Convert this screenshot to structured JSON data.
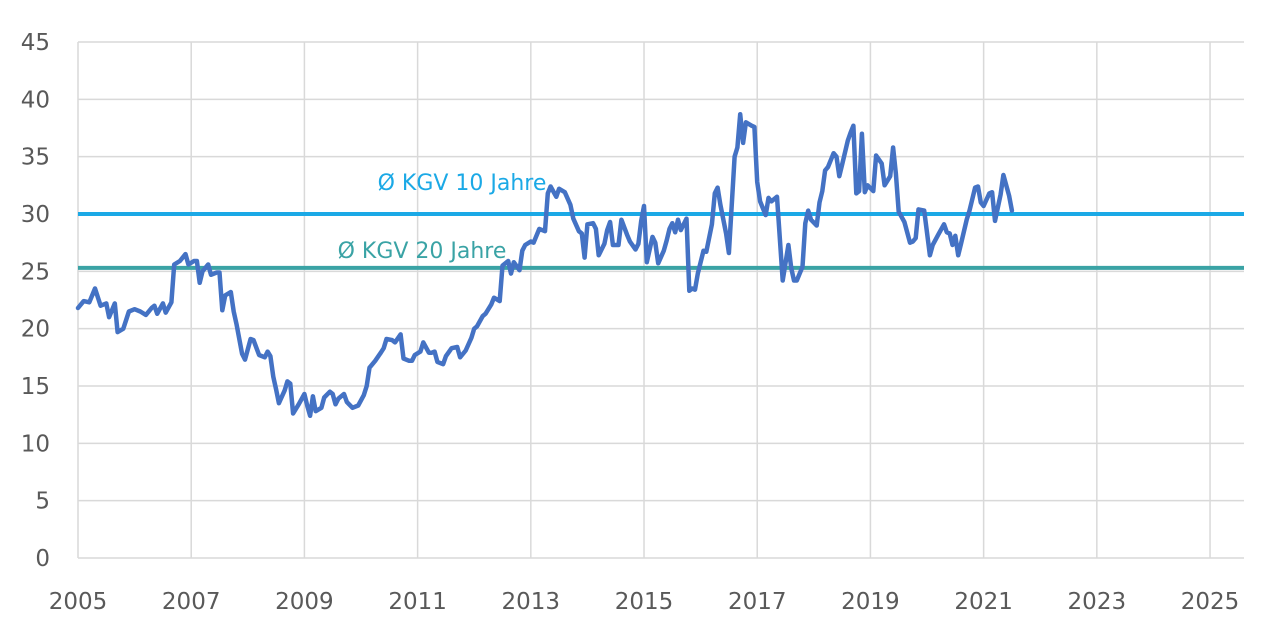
{
  "chart_data": {
    "type": "line",
    "title": "",
    "xlabel": "",
    "ylabel": "",
    "xlim": [
      2005.0,
      2025.6
    ],
    "ylim": [
      0,
      45
    ],
    "yticks": [
      0,
      5,
      10,
      15,
      20,
      25,
      30,
      35,
      40,
      45
    ],
    "xticks": [
      2005,
      2007,
      2009,
      2011,
      2013,
      2015,
      2017,
      2019,
      2021,
      2023,
      2025
    ],
    "grid": true,
    "legend": "none",
    "colors": {
      "series": "#4472C4",
      "avg10": "#1BA9E6",
      "avg20": "#3AA3A5",
      "grid": "#d9d9d9",
      "text": "#595959"
    },
    "reference_lines": [
      {
        "name": "Ø KGV 10 Jahre",
        "value": 30.0,
        "color": "#1BA9E6"
      },
      {
        "name": "Ø KGV 20 Jahre",
        "value": 25.3,
        "color": "#3AA3A5"
      }
    ],
    "series": [
      {
        "values": [
          [
            2005.0,
            21.8
          ],
          [
            2005.1,
            22.4
          ],
          [
            2005.2,
            22.3
          ],
          [
            2005.3,
            23.5
          ],
          [
            2005.4,
            22.0
          ],
          [
            2005.5,
            22.2
          ],
          [
            2005.55,
            21.0
          ],
          [
            2005.65,
            22.2
          ],
          [
            2005.7,
            19.7
          ],
          [
            2005.8,
            20.0
          ],
          [
            2005.9,
            21.5
          ],
          [
            2006.0,
            21.7
          ],
          [
            2006.1,
            21.5
          ],
          [
            2006.2,
            21.2
          ],
          [
            2006.3,
            21.8
          ],
          [
            2006.35,
            22.0
          ],
          [
            2006.4,
            21.3
          ],
          [
            2006.5,
            22.2
          ],
          [
            2006.55,
            21.4
          ],
          [
            2006.65,
            22.3
          ],
          [
            2006.7,
            25.6
          ],
          [
            2006.8,
            25.9
          ],
          [
            2006.9,
            26.5
          ],
          [
            2006.95,
            25.6
          ],
          [
            2007.05,
            25.9
          ],
          [
            2007.1,
            25.9
          ],
          [
            2007.15,
            24.0
          ],
          [
            2007.2,
            25.0
          ],
          [
            2007.3,
            25.6
          ],
          [
            2007.35,
            24.7
          ],
          [
            2007.45,
            24.9
          ],
          [
            2007.5,
            24.9
          ],
          [
            2007.55,
            21.6
          ],
          [
            2007.6,
            22.9
          ],
          [
            2007.7,
            23.2
          ],
          [
            2007.75,
            21.5
          ],
          [
            2007.8,
            20.4
          ],
          [
            2007.9,
            17.8
          ],
          [
            2007.95,
            17.3
          ],
          [
            2008.05,
            19.1
          ],
          [
            2008.1,
            19.0
          ],
          [
            2008.2,
            17.7
          ],
          [
            2008.3,
            17.5
          ],
          [
            2008.35,
            18.0
          ],
          [
            2008.4,
            17.6
          ],
          [
            2008.45,
            15.8
          ],
          [
            2008.5,
            14.7
          ],
          [
            2008.55,
            13.5
          ],
          [
            2008.65,
            14.6
          ],
          [
            2008.7,
            15.4
          ],
          [
            2008.75,
            15.2
          ],
          [
            2008.8,
            12.6
          ],
          [
            2008.9,
            13.4
          ],
          [
            2009.0,
            14.3
          ],
          [
            2009.05,
            13.3
          ],
          [
            2009.1,
            12.4
          ],
          [
            2009.15,
            14.1
          ],
          [
            2009.2,
            12.8
          ],
          [
            2009.3,
            13.1
          ],
          [
            2009.35,
            14.0
          ],
          [
            2009.45,
            14.5
          ],
          [
            2009.5,
            14.3
          ],
          [
            2009.55,
            13.4
          ],
          [
            2009.6,
            13.9
          ],
          [
            2009.7,
            14.3
          ],
          [
            2009.75,
            13.6
          ],
          [
            2009.85,
            13.1
          ],
          [
            2009.95,
            13.3
          ],
          [
            2010.05,
            14.2
          ],
          [
            2010.1,
            15.0
          ],
          [
            2010.15,
            16.6
          ],
          [
            2010.25,
            17.2
          ],
          [
            2010.35,
            17.9
          ],
          [
            2010.4,
            18.3
          ],
          [
            2010.45,
            19.1
          ],
          [
            2010.55,
            19.0
          ],
          [
            2010.6,
            18.8
          ],
          [
            2010.7,
            19.5
          ],
          [
            2010.75,
            17.4
          ],
          [
            2010.85,
            17.2
          ],
          [
            2010.9,
            17.2
          ],
          [
            2010.95,
            17.7
          ],
          [
            2011.05,
            18.0
          ],
          [
            2011.1,
            18.8
          ],
          [
            2011.2,
            17.9
          ],
          [
            2011.25,
            17.9
          ],
          [
            2011.3,
            18.0
          ],
          [
            2011.35,
            17.1
          ],
          [
            2011.45,
            16.9
          ],
          [
            2011.5,
            17.6
          ],
          [
            2011.6,
            18.3
          ],
          [
            2011.7,
            18.4
          ],
          [
            2011.75,
            17.5
          ],
          [
            2011.85,
            18.1
          ],
          [
            2011.95,
            19.2
          ],
          [
            2012.0,
            20.0
          ],
          [
            2012.05,
            20.2
          ],
          [
            2012.15,
            21.1
          ],
          [
            2012.2,
            21.3
          ],
          [
            2012.3,
            22.1
          ],
          [
            2012.35,
            22.7
          ],
          [
            2012.45,
            22.4
          ],
          [
            2012.5,
            25.5
          ],
          [
            2012.6,
            25.9
          ],
          [
            2012.65,
            24.8
          ],
          [
            2012.7,
            25.8
          ],
          [
            2012.8,
            25.1
          ],
          [
            2012.85,
            26.8
          ],
          [
            2012.9,
            27.3
          ],
          [
            2013.0,
            27.6
          ],
          [
            2013.05,
            27.5
          ],
          [
            2013.15,
            28.7
          ],
          [
            2013.25,
            28.5
          ],
          [
            2013.3,
            31.8
          ],
          [
            2013.35,
            32.4
          ],
          [
            2013.45,
            31.5
          ],
          [
            2013.5,
            32.2
          ],
          [
            2013.6,
            31.9
          ],
          [
            2013.7,
            30.8
          ],
          [
            2013.75,
            29.6
          ],
          [
            2013.85,
            28.5
          ],
          [
            2013.9,
            28.3
          ],
          [
            2013.95,
            26.2
          ],
          [
            2014.0,
            29.1
          ],
          [
            2014.1,
            29.2
          ],
          [
            2014.15,
            28.7
          ],
          [
            2014.2,
            26.4
          ],
          [
            2014.3,
            27.4
          ],
          [
            2014.35,
            28.6
          ],
          [
            2014.4,
            29.3
          ],
          [
            2014.45,
            27.3
          ],
          [
            2014.55,
            27.3
          ],
          [
            2014.6,
            29.5
          ],
          [
            2014.7,
            28.2
          ],
          [
            2014.75,
            27.6
          ],
          [
            2014.85,
            26.9
          ],
          [
            2014.9,
            27.4
          ],
          [
            2014.95,
            29.4
          ],
          [
            2015.0,
            30.7
          ],
          [
            2015.05,
            25.8
          ],
          [
            2015.15,
            28.0
          ],
          [
            2015.2,
            27.5
          ],
          [
            2015.25,
            25.7
          ],
          [
            2015.35,
            26.8
          ],
          [
            2015.4,
            27.7
          ],
          [
            2015.45,
            28.7
          ],
          [
            2015.5,
            29.2
          ],
          [
            2015.55,
            28.4
          ],
          [
            2015.6,
            29.5
          ],
          [
            2015.65,
            28.6
          ],
          [
            2015.75,
            29.6
          ],
          [
            2015.8,
            23.3
          ],
          [
            2015.85,
            23.5
          ],
          [
            2015.9,
            23.4
          ],
          [
            2015.95,
            24.8
          ],
          [
            2016.05,
            26.8
          ],
          [
            2016.1,
            26.7
          ],
          [
            2016.2,
            29.1
          ],
          [
            2016.25,
            31.8
          ],
          [
            2016.3,
            32.3
          ],
          [
            2016.35,
            30.8
          ],
          [
            2016.45,
            28.3
          ],
          [
            2016.5,
            26.6
          ],
          [
            2016.6,
            35.0
          ],
          [
            2016.65,
            35.8
          ],
          [
            2016.7,
            38.7
          ],
          [
            2016.75,
            36.2
          ],
          [
            2016.8,
            38.0
          ],
          [
            2016.9,
            37.7
          ],
          [
            2016.95,
            37.6
          ],
          [
            2017.0,
            32.8
          ],
          [
            2017.05,
            31.1
          ],
          [
            2017.15,
            29.9
          ],
          [
            2017.2,
            31.4
          ],
          [
            2017.25,
            31.1
          ],
          [
            2017.35,
            31.5
          ],
          [
            2017.45,
            24.2
          ],
          [
            2017.55,
            27.3
          ],
          [
            2017.6,
            25.3
          ],
          [
            2017.65,
            24.2
          ],
          [
            2017.7,
            24.2
          ],
          [
            2017.8,
            25.4
          ],
          [
            2017.85,
            29.2
          ],
          [
            2017.9,
            30.3
          ],
          [
            2017.95,
            29.5
          ],
          [
            2018.05,
            29.0
          ],
          [
            2018.1,
            31.0
          ],
          [
            2018.15,
            32.0
          ],
          [
            2018.2,
            33.8
          ],
          [
            2018.25,
            34.1
          ],
          [
            2018.35,
            35.3
          ],
          [
            2018.4,
            35.0
          ],
          [
            2018.45,
            33.3
          ],
          [
            2018.5,
            34.3
          ],
          [
            2018.6,
            36.4
          ],
          [
            2018.65,
            37.1
          ],
          [
            2018.7,
            37.7
          ],
          [
            2018.75,
            31.8
          ],
          [
            2018.8,
            32.0
          ],
          [
            2018.85,
            37.0
          ],
          [
            2018.9,
            31.9
          ],
          [
            2018.95,
            32.5
          ],
          [
            2019.05,
            32.0
          ],
          [
            2019.1,
            35.1
          ],
          [
            2019.2,
            34.4
          ],
          [
            2019.25,
            32.5
          ],
          [
            2019.35,
            33.3
          ],
          [
            2019.4,
            35.8
          ],
          [
            2019.45,
            33.5
          ],
          [
            2019.5,
            30.2
          ],
          [
            2019.6,
            29.3
          ],
          [
            2019.7,
            27.5
          ],
          [
            2019.75,
            27.6
          ],
          [
            2019.8,
            27.9
          ],
          [
            2019.85,
            30.4
          ],
          [
            2019.95,
            30.3
          ],
          [
            2020.05,
            26.4
          ],
          [
            2020.1,
            27.3
          ],
          [
            2020.2,
            28.2
          ],
          [
            2020.3,
            29.1
          ],
          [
            2020.35,
            28.4
          ],
          [
            2020.4,
            28.3
          ],
          [
            2020.45,
            27.3
          ],
          [
            2020.5,
            28.1
          ],
          [
            2020.55,
            26.4
          ],
          [
            2020.6,
            27.4
          ],
          [
            2020.7,
            29.5
          ],
          [
            2020.75,
            30.3
          ],
          [
            2020.85,
            32.3
          ],
          [
            2020.9,
            32.4
          ],
          [
            2020.95,
            31.0
          ],
          [
            2021.0,
            30.7
          ],
          [
            2021.1,
            31.8
          ],
          [
            2021.15,
            31.9
          ],
          [
            2021.2,
            29.4
          ],
          [
            2021.3,
            31.7
          ],
          [
            2021.35,
            33.4
          ],
          [
            2021.45,
            31.6
          ],
          [
            2021.5,
            30.3
          ]
        ]
      }
    ]
  }
}
